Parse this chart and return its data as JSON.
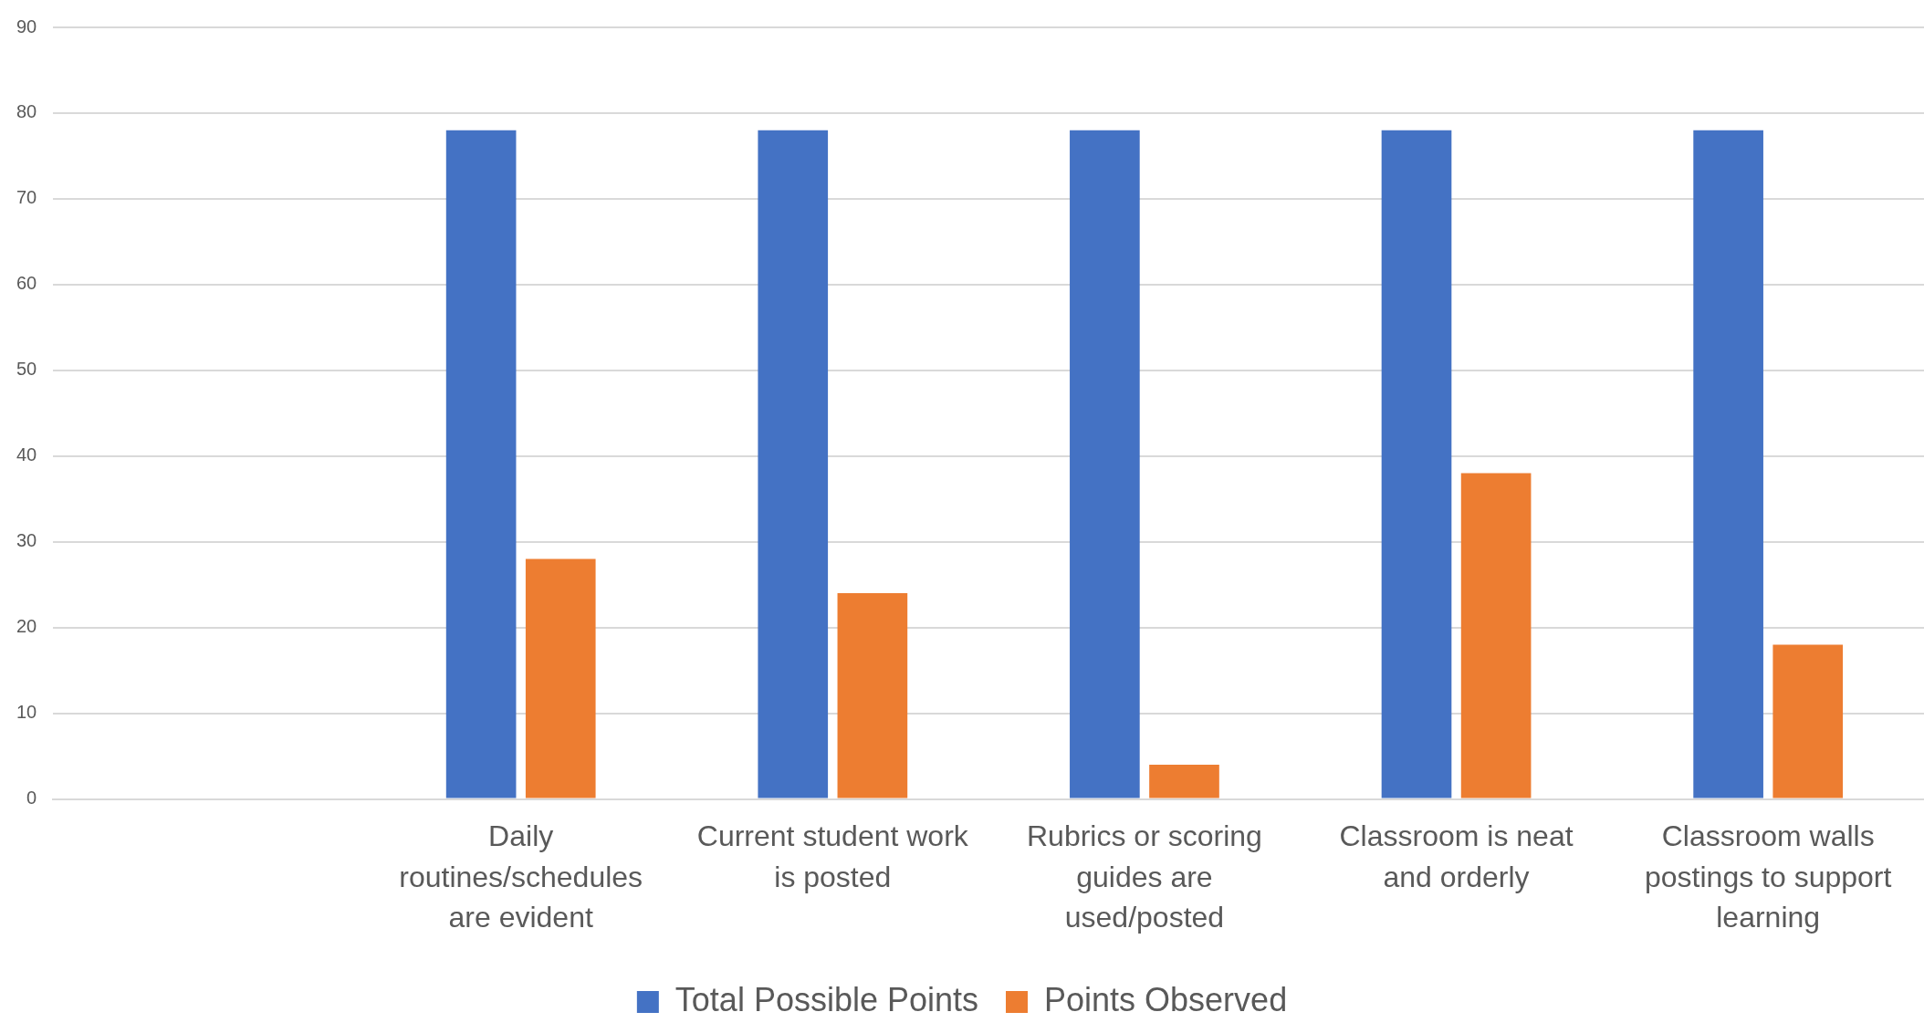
{
  "chart_data": {
    "type": "bar",
    "categories": [
      null,
      "Daily routines/schedules are evident",
      "Current student work is posted",
      "Rubrics or scoring guides are used/posted",
      "Classroom is neat and orderly",
      "Classroom walls postings to support learning"
    ],
    "series": [
      {
        "name": "Total Possible Points",
        "color": "#4472c4",
        "values": [
          null,
          78,
          78,
          78,
          78,
          78
        ]
      },
      {
        "name": "Points Observed",
        "color": "#ed7d31",
        "values": [
          null,
          28,
          24,
          4,
          38,
          18
        ]
      }
    ],
    "ylim": [
      0,
      90
    ],
    "yticks": [
      0,
      10,
      20,
      30,
      40,
      50,
      60,
      70,
      80,
      90
    ],
    "grid": "y",
    "legend": "bottom"
  }
}
